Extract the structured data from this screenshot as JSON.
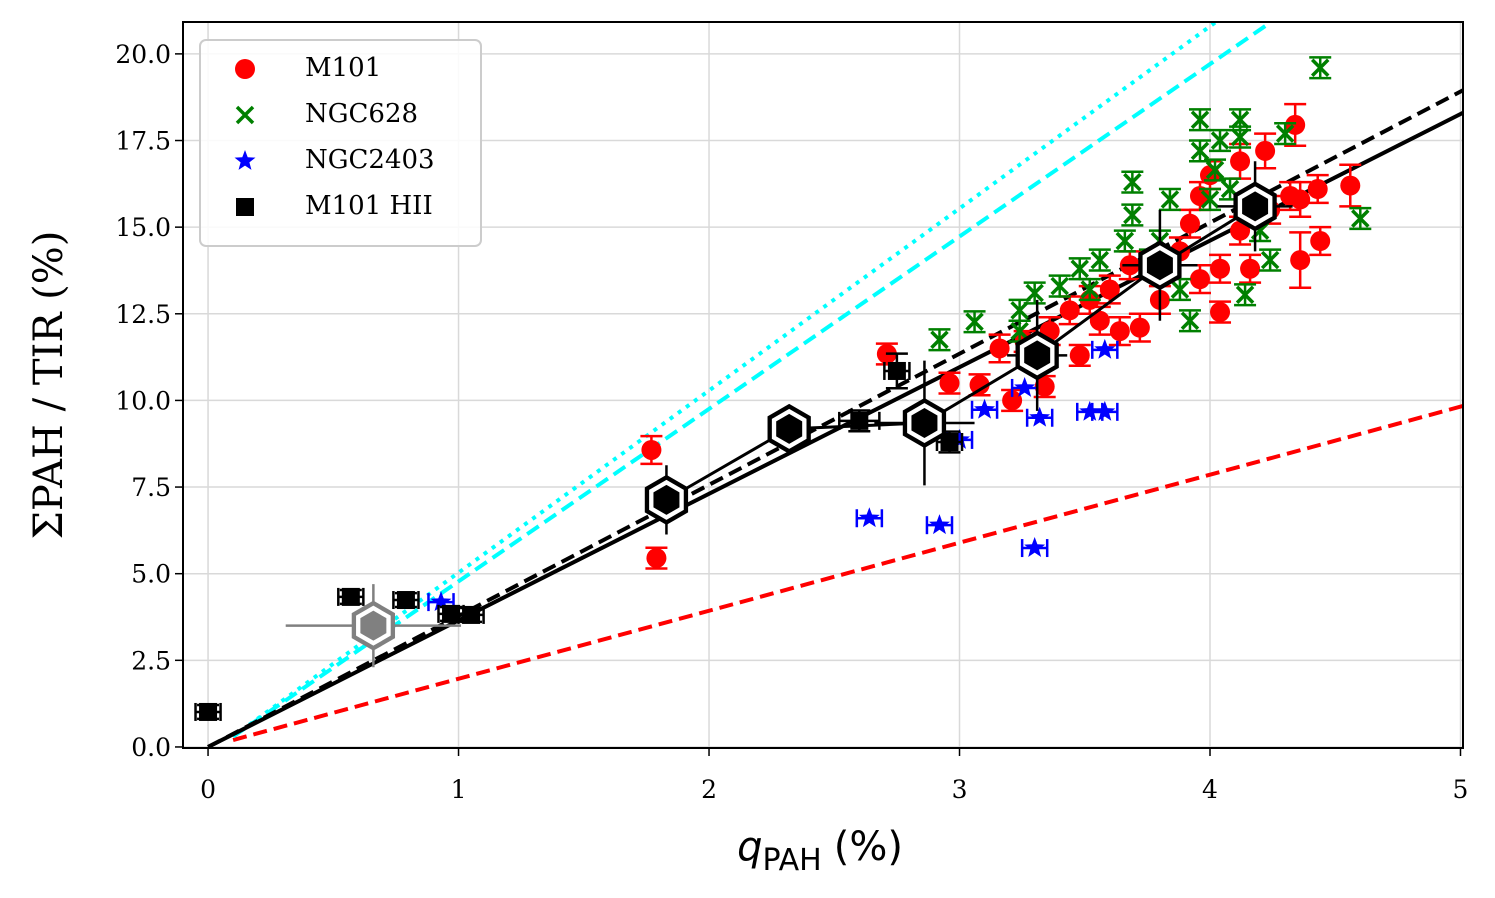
{
  "chart_data": {
    "type": "scatter",
    "ylabel": "ΣPAH / TIR (%)",
    "xlabel": {
      "base": "q",
      "sub": "PAH",
      "rest": "(%)"
    },
    "xlim": [
      -0.1,
      5.01
    ],
    "ylim": [
      -0.03,
      20.92
    ],
    "xticks": [
      0,
      1,
      2,
      3,
      4,
      5
    ],
    "yticks": [
      {
        "value": 0,
        "label": "0.0"
      },
      2.5,
      {
        "value": 5,
        "label": "5.0"
      },
      7.5,
      {
        "value": 10,
        "label": "10.0"
      },
      12.5,
      {
        "value": 15,
        "label": "15.0"
      },
      17.5,
      {
        "value": 20,
        "label": "20.0"
      }
    ],
    "grid": true,
    "legend": "upper left",
    "lines": [
      {
        "color": "#ff0000",
        "style": "dashed",
        "x": [
          0.1,
          5.01
        ],
        "values": [
          0.2,
          9.84
        ]
      },
      {
        "color": "#00ffff",
        "style": "dashed",
        "x": [
          0.1,
          4.24
        ],
        "values": [
          0.3,
          20.9
        ]
      },
      {
        "color": "#00ffff",
        "style": "dotted",
        "x": [
          0.1,
          4.02
        ],
        "values": [
          0.3,
          20.9
        ]
      },
      {
        "color": "#000000",
        "style": "dashed",
        "x": [
          0,
          5.01
        ],
        "values": [
          0,
          18.95
        ]
      },
      {
        "color": "#000000",
        "style": "solid",
        "x": [
          0,
          5.01
        ],
        "values": [
          0,
          18.3
        ]
      }
    ],
    "series": [
      {
        "name": "M101",
        "color": "#ff0000",
        "marker": "circle",
        "x": [
          1.77,
          1.79,
          2.71,
          2.96,
          3.08,
          3.21,
          3.34,
          3.48,
          3.16,
          3.36,
          3.44,
          3.52,
          3.6,
          3.56,
          3.72,
          3.8,
          3.68,
          3.88,
          3.92,
          3.96,
          4.0,
          4.04,
          4.16,
          4.22,
          4.24,
          4.32,
          4.34,
          4.36,
          4.44,
          4.43,
          4.56,
          4.04,
          4.12,
          3.96,
          3.8,
          4.36,
          4.12,
          3.64,
          3.26
        ],
        "values": [
          8.57,
          5.45,
          11.34,
          10.5,
          10.45,
          10.0,
          10.4,
          11.3,
          11.5,
          12.0,
          12.6,
          12.9,
          13.2,
          12.3,
          12.1,
          12.9,
          13.9,
          14.3,
          15.1,
          15.9,
          16.5,
          13.8,
          13.8,
          17.2,
          15.5,
          15.9,
          17.95,
          14.05,
          14.6,
          16.1,
          16.2,
          12.55,
          14.9,
          13.5,
          13.8,
          15.8,
          16.9,
          12.0,
          11.7
        ],
        "yerr": [
          0.4,
          0.3,
          0.3,
          0.3,
          0.3,
          0.3,
          0.3,
          0.3,
          0.4,
          0.4,
          0.4,
          0.4,
          0.4,
          0.4,
          0.4,
          0.4,
          0.4,
          0.4,
          0.4,
          0.4,
          0.4,
          0.4,
          0.4,
          0.5,
          0.4,
          0.4,
          0.6,
          0.8,
          0.4,
          0.4,
          0.6,
          0.3,
          0.4,
          0.4,
          0.4,
          0.5,
          0.5,
          0.4,
          0.3
        ]
      },
      {
        "name": "NGC628",
        "color": "#008000",
        "marker": "x",
        "x": [
          2.92,
          3.06,
          3.24,
          3.3,
          3.4,
          3.48,
          3.56,
          3.66,
          3.69,
          3.69,
          3.8,
          3.84,
          3.92,
          3.96,
          3.96,
          4.0,
          4.02,
          4.04,
          4.12,
          4.12,
          4.14,
          4.2,
          4.3,
          4.44,
          4.6,
          3.76,
          3.88,
          4.08,
          4.24,
          3.52,
          3.24
        ],
        "values": [
          11.75,
          12.27,
          12.6,
          13.1,
          13.3,
          13.8,
          14.05,
          14.6,
          15.35,
          16.3,
          14.6,
          15.8,
          12.3,
          17.2,
          18.1,
          15.8,
          16.65,
          17.5,
          18.1,
          17.6,
          13.05,
          14.9,
          17.7,
          19.6,
          15.25,
          14.05,
          13.2,
          16.1,
          14.05,
          13.2,
          12.0
        ],
        "yerr": [
          0.3,
          0.3,
          0.3,
          0.3,
          0.3,
          0.3,
          0.3,
          0.3,
          0.3,
          0.3,
          0.3,
          0.3,
          0.3,
          0.3,
          0.3,
          0.3,
          0.3,
          0.3,
          0.3,
          0.3,
          0.3,
          0.3,
          0.3,
          0.3,
          0.3,
          0.3,
          0.3,
          0.3,
          0.3,
          0.3,
          0.3
        ]
      },
      {
        "name": "NGC2403",
        "color": "#0000ff",
        "marker": "star",
        "x": [
          0.93,
          2.64,
          2.92,
          3.0,
          3.1,
          3.26,
          3.32,
          3.3,
          3.52,
          3.58,
          3.58
        ],
        "values": [
          4.18,
          6.6,
          6.4,
          8.86,
          9.73,
          10.36,
          9.5,
          5.74,
          9.67,
          9.67,
          11.46
        ],
        "xerr": [
          0.05,
          0.05,
          0.05,
          0.05,
          0.05,
          0.05,
          0.05,
          0.05,
          0.05,
          0.05,
          0.05
        ]
      },
      {
        "name": "M101 HII",
        "color": "#000000",
        "marker": "square",
        "x": [
          0,
          0.57,
          0.79,
          0.97,
          1.05,
          2.6,
          2.75,
          2.96
        ],
        "values": [
          1.01,
          4.33,
          4.24,
          3.84,
          3.81,
          9.41,
          10.85,
          8.8
        ],
        "xerr": [
          0.05,
          0.05,
          0.05,
          0.05,
          0.05,
          0.08,
          0.05,
          0.05
        ],
        "yerr": [
          0.2,
          0.2,
          0.2,
          0.2,
          0.2,
          0.3,
          0.5,
          0.3
        ]
      }
    ],
    "binned": [
      {
        "color": "#000000",
        "connect": true,
        "x": [
          1.83,
          2.32,
          2.86,
          3.31,
          3.8,
          4.18
        ],
        "values": [
          7.13,
          9.18,
          9.35,
          11.3,
          13.9,
          15.6
        ],
        "xerr": [
          0.05,
          0.05,
          0.2,
          0.12,
          0.15,
          0.15
        ],
        "yerr": [
          1.0,
          0.2,
          1.8,
          1.6,
          1.6,
          1.3
        ]
      },
      {
        "color": "#808080",
        "connect": false,
        "x": [
          0.66
        ],
        "values": [
          3.5
        ],
        "xerr": [
          0.35
        ],
        "yerr": [
          1.2
        ]
      }
    ]
  }
}
